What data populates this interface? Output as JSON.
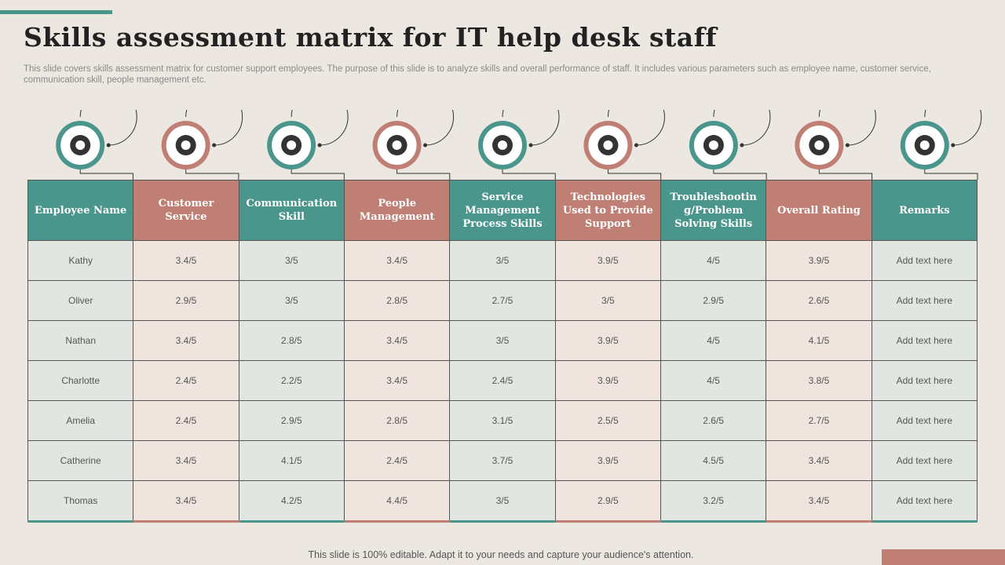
{
  "header": {
    "title": "Skills assessment matrix for IT help desk staff",
    "description": "This slide covers skills assessment matrix for customer support employees. The purpose of this slide is to analyze skills and overall performance of staff. It includes various parameters such as employee name, customer service, communication skill, people management etc."
  },
  "table": {
    "columns": [
      "Employee Name",
      "Customer Service",
      "Communication Skill",
      "People Management",
      "Service Management Process Skills",
      "Technologies Used to Provide Support",
      "Troubleshootin g/Problem Solving Skills",
      "Overall Rating",
      "Remarks"
    ],
    "rows": [
      [
        "Kathy",
        "3.4/5",
        "3/5",
        "3.4/5",
        "3/5",
        "3.9/5",
        "4/5",
        "3.9/5",
        "Add text here"
      ],
      [
        "Oliver",
        "2.9/5",
        "3/5",
        "2.8/5",
        "2.7/5",
        "3/5",
        "2.9/5",
        "2.6/5",
        "Add text here"
      ],
      [
        "Nathan",
        "3.4/5",
        "2.8/5",
        "3.4/5",
        "3/5",
        "3.9/5",
        "4/5",
        "4.1/5",
        "Add text here"
      ],
      [
        "Charlotte",
        "2.4/5",
        "2.2/5",
        "3.4/5",
        "2.4/5",
        "3.9/5",
        "4/5",
        "3.8/5",
        "Add text here"
      ],
      [
        "Amelia",
        "2.4/5",
        "2.9/5",
        "2.8/5",
        "3.1/5",
        "2.5/5",
        "2.6/5",
        "2.7/5",
        "Add text here"
      ],
      [
        "Catherine",
        "3.4/5",
        "4.1/5",
        "2.4/5",
        "3.7/5",
        "3.9/5",
        "4.5/5",
        "3.4/5",
        "Add text here"
      ],
      [
        "Thomas",
        "3.4/5",
        "4.2/5",
        "4.4/5",
        "3/5",
        "2.9/5",
        "3.2/5",
        "3.4/5",
        "Add text here"
      ]
    ]
  },
  "footer": {
    "text": "This slide is 100% editable. Adapt it to your needs and capture your audience's attention."
  }
}
